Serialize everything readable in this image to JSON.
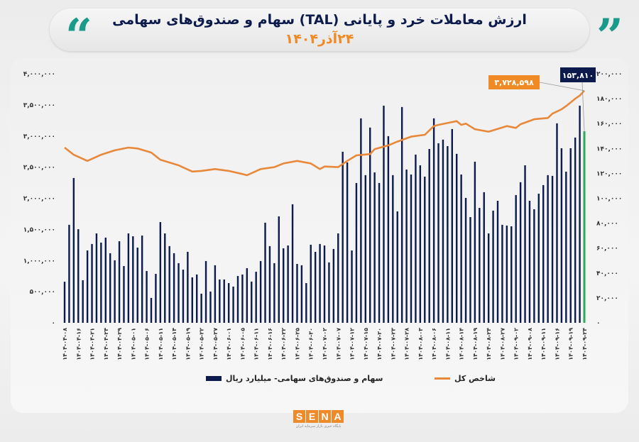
{
  "header": {
    "title": "ارزش معاملات خرد و پایانی (TAL) سهام و صندوق‌های سهامی",
    "subtitle": "۲۴آذر۱۴۰۴",
    "quote_left": "“",
    "quote_right": "”"
  },
  "logo": {
    "letters": [
      "S",
      "E",
      "N",
      "A"
    ],
    "tagline": "پایگاه خبری بازار سرمایه ایران"
  },
  "colors": {
    "bars": "#0d1b4c",
    "last_bar": "#2eaa5c",
    "line": "#e8883a",
    "accent": "#f08a24",
    "quote": "#1a9a8a"
  },
  "chart_data": {
    "type": "bar+line",
    "title": "ارزش معاملات خرد و پایانی (TAL) سهام و صندوق‌های سهامی",
    "legend": {
      "bars": "سهام و صندوق‌های سهامی- میلیارد ریال",
      "line": "شاخص کل",
      "placement": "bottom"
    },
    "y_left": {
      "range": [
        0,
        4000000
      ],
      "series": "line",
      "ticks": [
        "۰",
        "۵۰۰,۰۰۰",
        "۱,۰۰۰,۰۰۰",
        "۱,۵۰۰,۰۰۰",
        "۲,۰۰۰,۰۰۰",
        "۲,۵۰۰,۰۰۰",
        "۳,۰۰۰,۰۰۰",
        "۳,۵۰۰,۰۰۰",
        "۴,۰۰۰,۰۰۰"
      ]
    },
    "y_right": {
      "range": [
        0,
        200000
      ],
      "series": "bars",
      "ticks": [
        "۰",
        "۲۰,۰۰۰",
        "۴۰,۰۰۰",
        "۶۰,۰۰۰",
        "۸۰,۰۰۰",
        "۱۰۰,۰۰۰",
        "۱۲۰,۰۰۰",
        "۱۴۰,۰۰۰",
        "۱۶۰,۰۰۰",
        "۱۸۰,۰۰۰",
        "۲۰۰,۰۰۰"
      ]
    },
    "x_labels_every": 3,
    "x_labels": [
      "۱۴۰۴-۰۴-۰۸",
      "۱۴۰۴-۰۴-۱۶",
      "۱۴۰۴-۰۴-۲۱",
      "۱۴۰۴-۰۴-۲۴",
      "۱۴۰۴-۰۴-۲۹",
      "۱۴۰۴-۰۵-۰۱",
      "۱۴۰۴-۰۵-۰۶",
      "۱۴۰۴-۰۵-۱۱",
      "۱۴۰۴-۰۵-۱۴",
      "۱۴۰۴-۰۵-۱۹",
      "۱۴۰۴-۰۵-۲۲",
      "۱۴۰۴-۰۵-۲۷",
      "۱۴۰۴-۰۶-۰۱",
      "۱۴۰۴-۰۶-۰۵",
      "۱۴۰۴-۰۶-۱۱",
      "۱۴۰۴-۰۶-۱۶",
      "۱۴۰۴-۰۶-۲۲",
      "۱۴۰۴-۰۶-۲۵",
      "۱۴۰۴-۰۶-۳۰",
      "۱۴۰۴-۰۷-۰۲",
      "۱۴۰۴-۰۷-۰۷",
      "۱۴۰۴-۰۷-۱۲",
      "۱۴۰۴-۰۷-۱۵",
      "۱۴۰۴-۰۷-۲۰",
      "۱۴۰۴-۰۷-۲۳",
      "۱۴۰۴-۰۷-۲۸",
      "۱۴۰۴-۰۸-۰۳",
      "۱۴۰۴-۰۸-۰۶",
      "۱۴۰۴-۰۸-۱۱",
      "۱۴۰۴-۰۸-۱۴",
      "۱۴۰۴-۰۸-۱۹",
      "۱۴۰۴-۰۸-۲۴",
      "۱۴۰۴-۰۸-۲۷",
      "۱۴۰۴-۰۹-۰۲",
      "۱۴۰۴-۰۹-۰۸",
      "۱۴۰۴-۰۹-۱۱",
      "۱۴۰۴-۰۹-۱۶",
      "۱۴۰۴-۰۹-۱۹",
      "۱۴۰۴-۰۹-۲۴"
    ],
    "bar_values": [
      33000,
      78700,
      116300,
      75200,
      34200,
      58100,
      63300,
      71800,
      64400,
      68400,
      55900,
      50200,
      65500,
      45600,
      71800,
      69500,
      60400,
      70100,
      41600,
      20000,
      39300,
      80900,
      71800,
      61600,
      55900,
      47900,
      42700,
      57000,
      36500,
      38800,
      23400,
      49600,
      25100,
      46200,
      34800,
      34800,
      31900,
      29100,
      37600,
      38800,
      43900,
      33100,
      41000,
      49600,
      80400,
      61600,
      47900,
      85500,
      59800,
      62100,
      95200,
      47300,
      46200,
      31900,
      62700,
      57000,
      63300,
      62100,
      48500,
      59300,
      71800,
      137400,
      128800,
      58100,
      112300,
      164200,
      118600,
      156800,
      120800,
      112300,
      174400,
      149900,
      118600,
      89500,
      173300,
      123100,
      119100,
      135100,
      126500,
      117400,
      139600,
      164200,
      144200,
      147100,
      141900,
      155600,
      135700,
      119100,
      100300,
      84900,
      129400,
      92300,
      104900,
      71800,
      90100,
      98000,
      78700,
      78100,
      77500,
      102600,
      112900,
      126500,
      98000,
      91200,
      103700,
      110600,
      118600,
      118000,
      160200,
      140200,
      121400,
      140200,
      148800,
      174400,
      153810
    ],
    "line_points": [
      [
        0,
        2815000
      ],
      [
        2,
        2700000
      ],
      [
        5,
        2600000
      ],
      [
        8,
        2700000
      ],
      [
        11,
        2770000
      ],
      [
        14,
        2815000
      ],
      [
        16,
        2800000
      ],
      [
        19,
        2735000
      ],
      [
        21,
        2620000
      ],
      [
        25,
        2530000
      ],
      [
        28,
        2430000
      ],
      [
        30,
        2440000
      ],
      [
        33,
        2470000
      ],
      [
        36,
        2440000
      ],
      [
        39,
        2390000
      ],
      [
        40,
        2370000
      ],
      [
        43,
        2470000
      ],
      [
        46,
        2500000
      ],
      [
        48,
        2560000
      ],
      [
        51,
        2600000
      ],
      [
        54,
        2560000
      ],
      [
        56,
        2470000
      ],
      [
        57,
        2510000
      ],
      [
        60,
        2500000
      ],
      [
        62,
        2600000
      ],
      [
        64,
        2690000
      ],
      [
        67,
        2710000
      ],
      [
        68,
        2790000
      ],
      [
        71,
        2850000
      ],
      [
        73,
        2910000
      ],
      [
        76,
        2990000
      ],
      [
        79,
        3020000
      ],
      [
        81,
        3160000
      ],
      [
        82,
        3180000
      ],
      [
        86,
        3240000
      ],
      [
        87,
        3180000
      ],
      [
        88,
        3200000
      ],
      [
        90,
        3110000
      ],
      [
        93,
        3070000
      ],
      [
        97,
        3160000
      ],
      [
        99,
        3130000
      ],
      [
        100,
        3190000
      ],
      [
        103,
        3270000
      ],
      [
        106,
        3290000
      ],
      [
        107,
        3360000
      ],
      [
        109,
        3430000
      ],
      [
        110,
        3480000
      ],
      [
        112,
        3600000
      ],
      [
        113,
        3650000
      ],
      [
        114,
        3728598
      ]
    ],
    "annotations": {
      "line_last": "۳,۷۲۸,۵۹۸",
      "bar_last": "۱۵۳,۸۱۰"
    }
  }
}
